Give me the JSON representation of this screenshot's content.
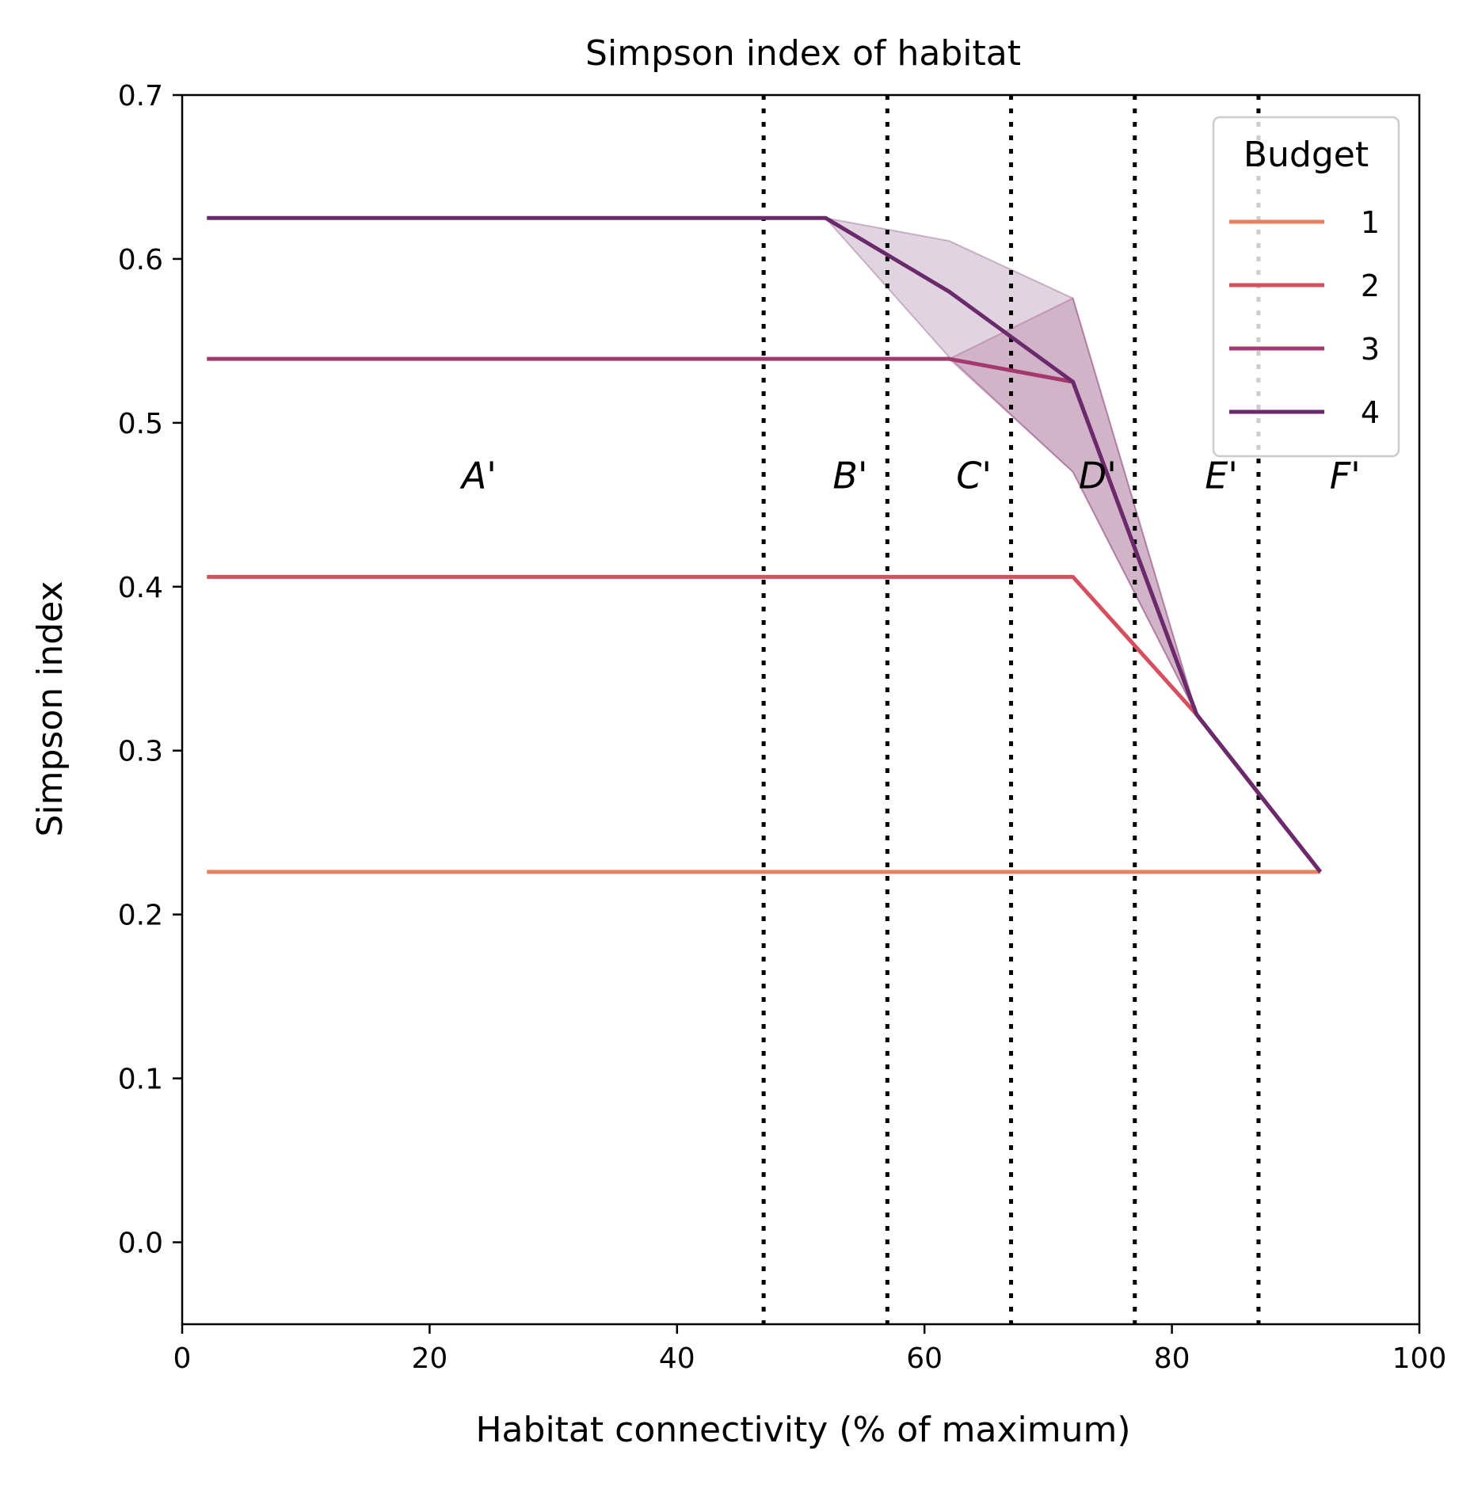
{
  "chart_data": {
    "type": "line",
    "title": "Simpson index of habitat",
    "xlabel": "Habitat connectivity (% of maximum)",
    "ylabel": "Simpson index",
    "xlim": [
      0,
      100
    ],
    "ylim": [
      -0.05,
      0.7
    ],
    "xticks": [
      0,
      20,
      40,
      60,
      80,
      100
    ],
    "xtick_labels": [
      "0",
      "20",
      "40",
      "60",
      "80",
      "100"
    ],
    "yticks": [
      0.0,
      0.1,
      0.2,
      0.3,
      0.4,
      0.5,
      0.6,
      0.7
    ],
    "ytick_labels": [
      "0.0",
      "0.1",
      "0.2",
      "0.3",
      "0.4",
      "0.5",
      "0.6",
      "0.7"
    ],
    "grid": false,
    "vertical_dotted_lines_x": [
      47,
      57,
      67,
      77,
      87
    ],
    "region_labels": [
      {
        "text": "A'",
        "x": 24,
        "y": 0.46
      },
      {
        "text": "B'",
        "x": 54,
        "y": 0.46
      },
      {
        "text": "C'",
        "x": 64,
        "y": 0.46
      },
      {
        "text": "D'",
        "x": 74,
        "y": 0.46
      },
      {
        "text": "E'",
        "x": 84,
        "y": 0.46
      },
      {
        "text": "F'",
        "x": 94,
        "y": 0.46
      }
    ],
    "legend": {
      "title": "Budget",
      "position": "top-right"
    },
    "series": [
      {
        "name": "1",
        "color": "#e8825e",
        "x": [
          2,
          92
        ],
        "y": [
          0.226,
          0.226
        ]
      },
      {
        "name": "2",
        "color": "#d64f5e",
        "x": [
          2,
          72,
          82,
          92
        ],
        "y": [
          0.406,
          0.406,
          0.322,
          0.226
        ]
      },
      {
        "name": "3",
        "color": "#a3396e",
        "x": [
          2,
          62,
          72,
          82,
          92
        ],
        "y": [
          0.539,
          0.539,
          0.525,
          0.322,
          0.226
        ],
        "band_lower": [
          0.539,
          0.539,
          0.47,
          0.322,
          0.226
        ],
        "band_upper": [
          0.539,
          0.539,
          0.576,
          0.322,
          0.226
        ]
      },
      {
        "name": "4",
        "color": "#6b2a6b",
        "x": [
          2,
          52,
          62,
          72,
          82,
          92
        ],
        "y": [
          0.625,
          0.625,
          0.58,
          0.525,
          0.322,
          0.226
        ],
        "band_lower": [
          0.625,
          0.625,
          0.54,
          0.47,
          0.322,
          0.226
        ],
        "band_upper": [
          0.625,
          0.625,
          0.611,
          0.576,
          0.322,
          0.226
        ]
      }
    ]
  }
}
